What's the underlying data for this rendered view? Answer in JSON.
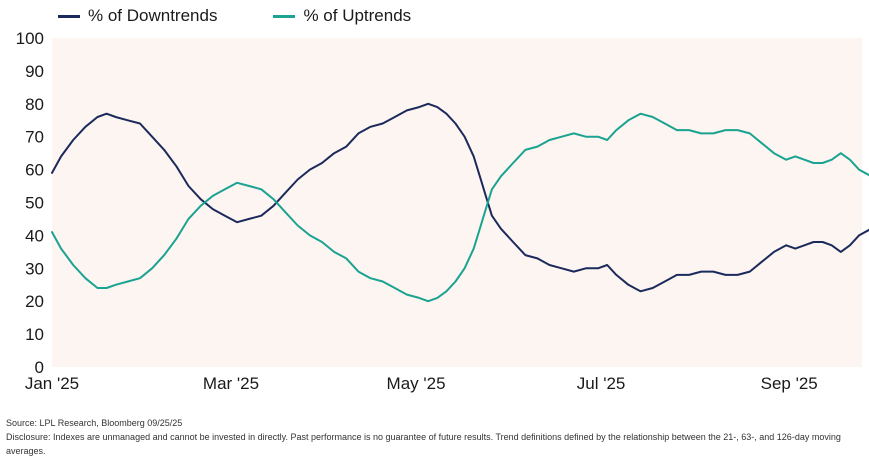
{
  "chart_data": {
    "type": "line",
    "title": "",
    "xlabel": "",
    "ylabel": "",
    "ylim": [
      0,
      100
    ],
    "yticks": [
      0,
      10,
      20,
      30,
      40,
      50,
      60,
      70,
      80,
      90,
      100
    ],
    "xlim": [
      "2025-01-01",
      "2025-09-25"
    ],
    "xticks": [
      {
        "label": "Jan '25",
        "date": "2025-01-01"
      },
      {
        "label": "Mar '25",
        "date": "2025-03-01"
      },
      {
        "label": "May '25",
        "date": "2025-05-01"
      },
      {
        "label": "Jul '25",
        "date": "2025-07-01"
      },
      {
        "label": "Sep '25",
        "date": "2025-09-01"
      }
    ],
    "grid": false,
    "legend_position": "top-left",
    "plot_background": "#fdf5f1",
    "series": [
      {
        "name": "% of Downtrends",
        "color": "#1b2a5c",
        "points": [
          [
            "2025-01-01",
            59
          ],
          [
            "2025-01-04",
            64
          ],
          [
            "2025-01-08",
            69
          ],
          [
            "2025-01-12",
            73
          ],
          [
            "2025-01-16",
            76
          ],
          [
            "2025-01-19",
            77
          ],
          [
            "2025-01-22",
            76
          ],
          [
            "2025-01-26",
            75
          ],
          [
            "2025-01-30",
            74
          ],
          [
            "2025-02-03",
            70
          ],
          [
            "2025-02-07",
            66
          ],
          [
            "2025-02-11",
            61
          ],
          [
            "2025-02-15",
            55
          ],
          [
            "2025-02-19",
            51
          ],
          [
            "2025-02-23",
            48
          ],
          [
            "2025-02-27",
            46
          ],
          [
            "2025-03-03",
            44
          ],
          [
            "2025-03-07",
            45
          ],
          [
            "2025-03-11",
            46
          ],
          [
            "2025-03-15",
            49
          ],
          [
            "2025-03-19",
            53
          ],
          [
            "2025-03-23",
            57
          ],
          [
            "2025-03-27",
            60
          ],
          [
            "2025-03-31",
            62
          ],
          [
            "2025-04-04",
            65
          ],
          [
            "2025-04-08",
            67
          ],
          [
            "2025-04-12",
            71
          ],
          [
            "2025-04-16",
            73
          ],
          [
            "2025-04-20",
            74
          ],
          [
            "2025-04-24",
            76
          ],
          [
            "2025-04-28",
            78
          ],
          [
            "2025-05-02",
            79
          ],
          [
            "2025-05-05",
            80
          ],
          [
            "2025-05-08",
            79
          ],
          [
            "2025-05-11",
            77
          ],
          [
            "2025-05-14",
            74
          ],
          [
            "2025-05-17",
            70
          ],
          [
            "2025-05-20",
            64
          ],
          [
            "2025-05-22",
            58
          ],
          [
            "2025-05-24",
            52
          ],
          [
            "2025-05-26",
            46
          ],
          [
            "2025-05-29",
            42
          ],
          [
            "2025-06-02",
            38
          ],
          [
            "2025-06-06",
            34
          ],
          [
            "2025-06-10",
            33
          ],
          [
            "2025-06-14",
            31
          ],
          [
            "2025-06-18",
            30
          ],
          [
            "2025-06-22",
            29
          ],
          [
            "2025-06-26",
            30
          ],
          [
            "2025-06-30",
            30
          ],
          [
            "2025-07-03",
            31
          ],
          [
            "2025-07-06",
            28
          ],
          [
            "2025-07-10",
            25
          ],
          [
            "2025-07-14",
            23
          ],
          [
            "2025-07-18",
            24
          ],
          [
            "2025-07-22",
            26
          ],
          [
            "2025-07-26",
            28
          ],
          [
            "2025-07-30",
            28
          ],
          [
            "2025-08-03",
            29
          ],
          [
            "2025-08-07",
            29
          ],
          [
            "2025-08-11",
            28
          ],
          [
            "2025-08-15",
            28
          ],
          [
            "2025-08-19",
            29
          ],
          [
            "2025-08-23",
            32
          ],
          [
            "2025-08-27",
            35
          ],
          [
            "2025-08-31",
            37
          ],
          [
            "2025-09-03",
            36
          ],
          [
            "2025-09-06",
            37
          ],
          [
            "2025-09-09",
            38
          ],
          [
            "2025-09-12",
            38
          ],
          [
            "2025-09-15",
            37
          ],
          [
            "2025-09-18",
            35
          ],
          [
            "2025-09-21",
            37
          ],
          [
            "2025-09-24",
            40
          ],
          [
            "2025-09-28",
            42
          ]
        ]
      },
      {
        "name": "% of Uptrends",
        "color": "#1aa390",
        "points": [
          [
            "2025-01-01",
            41
          ],
          [
            "2025-01-04",
            36
          ],
          [
            "2025-01-08",
            31
          ],
          [
            "2025-01-12",
            27
          ],
          [
            "2025-01-16",
            24
          ],
          [
            "2025-01-19",
            24
          ],
          [
            "2025-01-22",
            25
          ],
          [
            "2025-01-26",
            26
          ],
          [
            "2025-01-30",
            27
          ],
          [
            "2025-02-03",
            30
          ],
          [
            "2025-02-07",
            34
          ],
          [
            "2025-02-11",
            39
          ],
          [
            "2025-02-15",
            45
          ],
          [
            "2025-02-19",
            49
          ],
          [
            "2025-02-23",
            52
          ],
          [
            "2025-02-27",
            54
          ],
          [
            "2025-03-03",
            56
          ],
          [
            "2025-03-07",
            55
          ],
          [
            "2025-03-11",
            54
          ],
          [
            "2025-03-15",
            51
          ],
          [
            "2025-03-19",
            47
          ],
          [
            "2025-03-23",
            43
          ],
          [
            "2025-03-27",
            40
          ],
          [
            "2025-03-31",
            38
          ],
          [
            "2025-04-04",
            35
          ],
          [
            "2025-04-08",
            33
          ],
          [
            "2025-04-12",
            29
          ],
          [
            "2025-04-16",
            27
          ],
          [
            "2025-04-20",
            26
          ],
          [
            "2025-04-24",
            24
          ],
          [
            "2025-04-28",
            22
          ],
          [
            "2025-05-02",
            21
          ],
          [
            "2025-05-05",
            20
          ],
          [
            "2025-05-08",
            21
          ],
          [
            "2025-05-11",
            23
          ],
          [
            "2025-05-14",
            26
          ],
          [
            "2025-05-17",
            30
          ],
          [
            "2025-05-20",
            36
          ],
          [
            "2025-05-22",
            42
          ],
          [
            "2025-05-24",
            48
          ],
          [
            "2025-05-26",
            54
          ],
          [
            "2025-05-29",
            58
          ],
          [
            "2025-06-02",
            62
          ],
          [
            "2025-06-06",
            66
          ],
          [
            "2025-06-10",
            67
          ],
          [
            "2025-06-14",
            69
          ],
          [
            "2025-06-18",
            70
          ],
          [
            "2025-06-22",
            71
          ],
          [
            "2025-06-26",
            70
          ],
          [
            "2025-06-30",
            70
          ],
          [
            "2025-07-03",
            69
          ],
          [
            "2025-07-06",
            72
          ],
          [
            "2025-07-10",
            75
          ],
          [
            "2025-07-14",
            77
          ],
          [
            "2025-07-18",
            76
          ],
          [
            "2025-07-22",
            74
          ],
          [
            "2025-07-26",
            72
          ],
          [
            "2025-07-30",
            72
          ],
          [
            "2025-08-03",
            71
          ],
          [
            "2025-08-07",
            71
          ],
          [
            "2025-08-11",
            72
          ],
          [
            "2025-08-15",
            72
          ],
          [
            "2025-08-19",
            71
          ],
          [
            "2025-08-23",
            68
          ],
          [
            "2025-08-27",
            65
          ],
          [
            "2025-08-31",
            63
          ],
          [
            "2025-09-03",
            64
          ],
          [
            "2025-09-06",
            63
          ],
          [
            "2025-09-09",
            62
          ],
          [
            "2025-09-12",
            62
          ],
          [
            "2025-09-15",
            63
          ],
          [
            "2025-09-18",
            65
          ],
          [
            "2025-09-21",
            63
          ],
          [
            "2025-09-24",
            60
          ],
          [
            "2025-09-28",
            58
          ]
        ]
      }
    ]
  },
  "footnotes": {
    "source": "Source: LPL Research, Bloomberg 09/25/25",
    "disclosure": "Disclosure: Indexes are unmanaged and cannot be invested in directly. Past performance is no guarantee of future results. Trend definitions defined by the relationship between the 21-, 63-, and 126-day moving averages."
  }
}
